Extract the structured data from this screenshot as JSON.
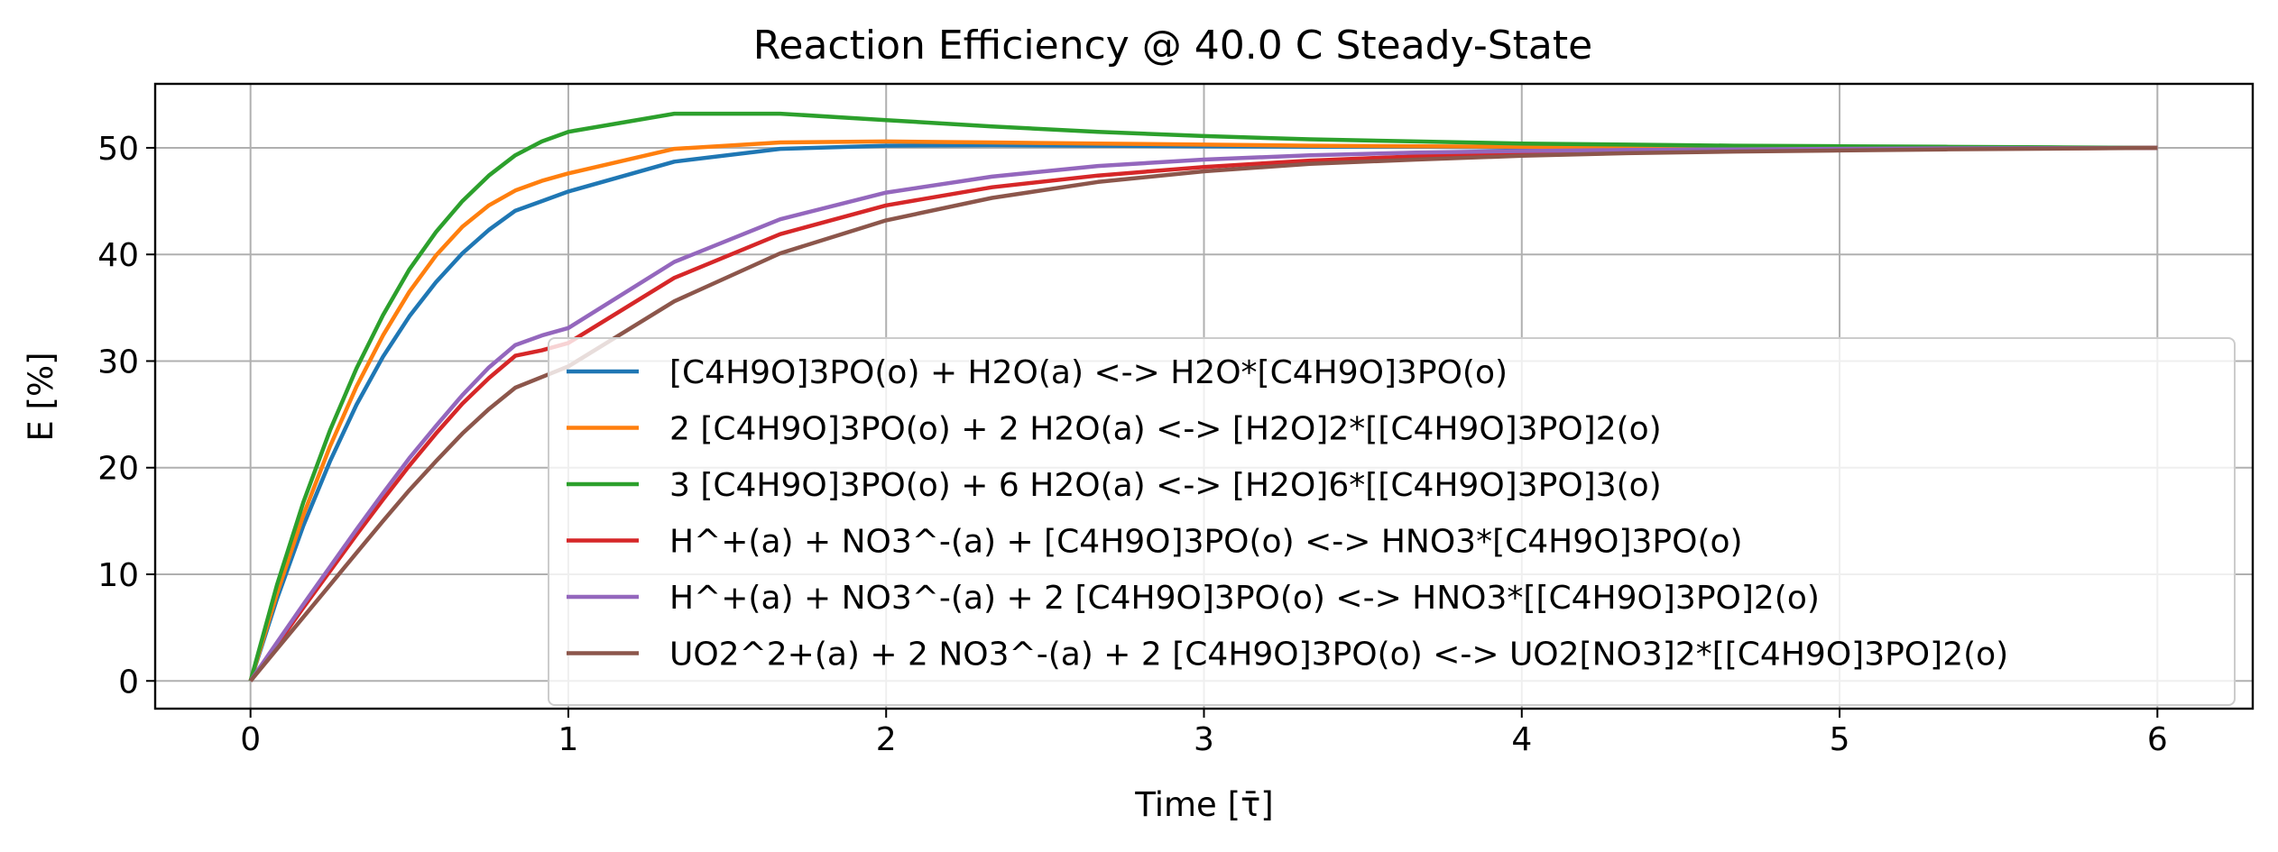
{
  "chart_data": {
    "type": "line",
    "title": "Reaction Efficiency @ 40.0 C Steady-State",
    "xlabel": "Time [τ̄]",
    "ylabel": "E [%]",
    "xlim": [
      -0.3,
      6.3
    ],
    "ylim": [
      -2.6,
      56.0
    ],
    "xticks": [
      "0",
      "1",
      "2",
      "3",
      "4",
      "5",
      "6"
    ],
    "yticks": [
      "0",
      "10",
      "20",
      "30",
      "40",
      "50"
    ],
    "grid": true,
    "legend_position": "lower-right",
    "x": [
      0,
      0.0833,
      0.1667,
      0.25,
      0.3333,
      0.4167,
      0.5,
      0.5833,
      0.6667,
      0.75,
      0.8333,
      0.9167,
      1.0,
      1.3333,
      1.6667,
      2.0,
      2.3333,
      2.6667,
      3.0,
      3.3333,
      3.6667,
      4.0,
      4.3333,
      4.6667,
      5.0,
      5.3333,
      5.6667,
      6.0
    ],
    "series": [
      {
        "name": "[C4H9O]3PO(o) + H2O(a) <-> H2O*[C4H9O]3PO(o)",
        "color": "#1f77b4",
        "values": [
          0,
          7.7,
          14.6,
          20.6,
          25.9,
          30.4,
          34.2,
          37.4,
          40.1,
          42.3,
          44.1,
          45.0,
          45.9,
          48.7,
          49.9,
          50.2,
          50.25,
          50.2,
          50.15,
          50.1,
          50.1,
          50.05,
          50.05,
          50.0,
          50.0,
          50.0,
          50.0,
          50.0
        ]
      },
      {
        "name": "2 [C4H9O]3PO(o) + 2 H2O(a) <-> [H2O]2*[[C4H9O]3PO]2(o)",
        "color": "#ff7f0e",
        "values": [
          0,
          8.2,
          15.6,
          22.0,
          27.6,
          32.4,
          36.5,
          39.9,
          42.6,
          44.6,
          46.0,
          46.9,
          47.6,
          49.9,
          50.5,
          50.6,
          50.5,
          50.4,
          50.3,
          50.2,
          50.15,
          50.1,
          50.05,
          50.0,
          50.0,
          50.0,
          50.0,
          50.0
        ]
      },
      {
        "name": "3 [C4H9O]3PO(o) + 6 H2O(a) <-> [H2O]6*[[C4H9O]3PO]3(o)",
        "color": "#2ca02c",
        "values": [
          0,
          9.0,
          16.8,
          23.5,
          29.3,
          34.3,
          38.6,
          42.1,
          45.0,
          47.4,
          49.3,
          50.6,
          51.5,
          53.2,
          53.2,
          52.6,
          52.0,
          51.5,
          51.1,
          50.8,
          50.6,
          50.4,
          50.3,
          50.2,
          50.15,
          50.1,
          50.05,
          50.0
        ]
      },
      {
        "name": "H^+(a) + NO3^-(a) + [C4H9O]3PO(o) <-> HNO3*[C4H9O]3PO(o)",
        "color": "#d62728",
        "values": [
          0,
          3.4,
          6.9,
          10.3,
          13.7,
          17.0,
          20.2,
          23.2,
          26.0,
          28.4,
          30.5,
          31.0,
          31.7,
          37.8,
          41.9,
          44.6,
          46.3,
          47.4,
          48.2,
          48.8,
          49.2,
          49.5,
          49.65,
          49.75,
          49.85,
          49.9,
          49.95,
          50.0
        ]
      },
      {
        "name": "H^+(a) + NO3^-(a) + 2 [C4H9O]3PO(o) <-> HNO3*[[C4H9O]3PO]2(o)",
        "color": "#9467bd",
        "values": [
          0,
          3.6,
          7.2,
          10.7,
          14.2,
          17.6,
          20.9,
          23.9,
          26.8,
          29.4,
          31.5,
          32.4,
          33.1,
          39.3,
          43.3,
          45.8,
          47.3,
          48.3,
          48.9,
          49.3,
          49.55,
          49.7,
          49.8,
          49.85,
          49.9,
          49.95,
          49.97,
          50.0
        ]
      },
      {
        "name": "UO2^2+(a) + 2 NO3^-(a) + 2 [C4H9O]3PO(o) <-> UO2[NO3]2*[[C4H9O]3PO]2(o)",
        "color": "#8c564b",
        "values": [
          0,
          3.0,
          6.0,
          9.0,
          12.0,
          15.0,
          17.9,
          20.6,
          23.2,
          25.5,
          27.5,
          28.5,
          29.5,
          35.6,
          40.1,
          43.2,
          45.3,
          46.8,
          47.8,
          48.5,
          48.9,
          49.25,
          49.5,
          49.65,
          49.75,
          49.85,
          49.92,
          50.0
        ]
      }
    ]
  }
}
